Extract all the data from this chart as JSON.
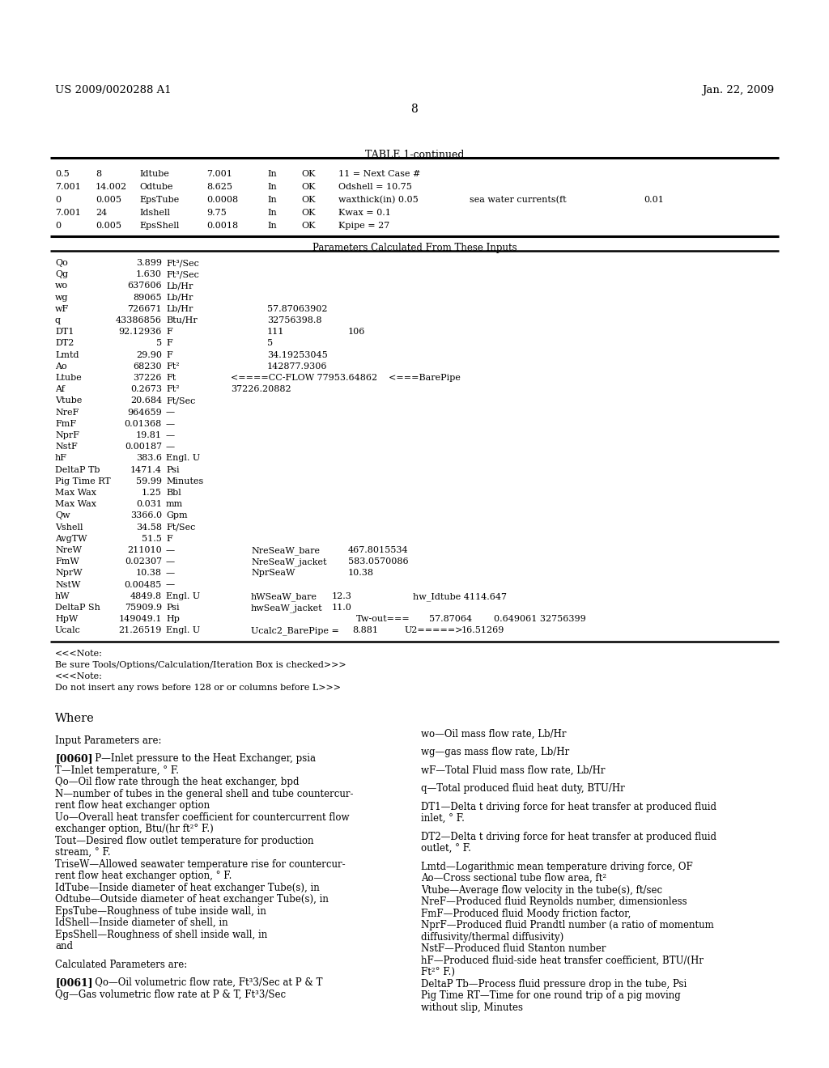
{
  "header_left": "US 2009/0020288 A1",
  "header_right": "Jan. 22, 2009",
  "page_number": "8",
  "table_title": "TABLE 1-continued",
  "table_top_rows": [
    [
      "0.5",
      "8",
      "Idtube",
      "7.001",
      "In",
      "OK",
      "11 = Next Case #",
      "",
      ""
    ],
    [
      "7.001",
      "14.002",
      "Odtube",
      "8.625",
      "In",
      "OK",
      "Odshell = 10.75",
      "",
      ""
    ],
    [
      "0",
      "0.005",
      "EpsTube",
      "0.0008",
      "In",
      "OK",
      "waxthick(in) 0.05",
      "sea water currents(ft",
      "0.01"
    ],
    [
      "7.001",
      "24",
      "Idshell",
      "9.75",
      "In",
      "OK",
      "Kwax = 0.1",
      "",
      ""
    ],
    [
      "0",
      "0.005",
      "EpsShell",
      "0.0018",
      "In",
      "OK",
      "Kpipe = 27",
      "",
      ""
    ]
  ],
  "params_header": "Parameters Calculated From These Inputs",
  "calc_params": [
    [
      "Qo",
      "3.899",
      "Ft³/Sec",
      "",
      "",
      ""
    ],
    [
      "Qg",
      "1.630",
      "Ft³/Sec",
      "",
      "",
      ""
    ],
    [
      "wo",
      "637606",
      "Lb/Hr",
      "",
      "",
      ""
    ],
    [
      "wg",
      "89065",
      "Lb/Hr",
      "",
      "",
      ""
    ],
    [
      "wF",
      "726671",
      "Lb/Hr",
      "57.87063902",
      "",
      ""
    ],
    [
      "q",
      "43386856",
      "Btu/Hr",
      "32756398.8",
      "",
      ""
    ],
    [
      "DT1",
      "92.12936",
      "F",
      "111",
      "106",
      ""
    ],
    [
      "DT2",
      "5",
      "F",
      "5",
      "",
      ""
    ],
    [
      "Lmtd",
      "29.90",
      "F",
      "34.19253045",
      "",
      ""
    ],
    [
      "Ao",
      "68230",
      "Ft²",
      "142877.9306",
      "",
      ""
    ],
    [
      "Ltube",
      "37226",
      "Ft",
      "<====CC-FLOW 77953.64862    <===BarePipe",
      "",
      ""
    ],
    [
      "Af",
      "0.2673",
      "Ft²",
      "37226.20882",
      "",
      ""
    ],
    [
      "Vtube",
      "20.684",
      "Ft/Sec",
      "",
      "",
      ""
    ],
    [
      "NreF",
      "964659",
      "—",
      "",
      "",
      ""
    ],
    [
      "FmF",
      "0.01368",
      "—",
      "",
      "",
      ""
    ],
    [
      "NprF",
      "19.81",
      "—",
      "",
      "",
      ""
    ],
    [
      "NstF",
      "0.00187",
      "—",
      "",
      "",
      ""
    ],
    [
      "hF",
      "383.6",
      "Engl. U",
      "",
      "",
      ""
    ],
    [
      "DeltaP Tb",
      "1471.4",
      "Psi",
      "",
      "",
      ""
    ],
    [
      "Pig Time RT",
      "59.99",
      "Minutes",
      "",
      "",
      ""
    ],
    [
      "Max Wax",
      "1.25",
      "Bbl",
      "",
      "",
      ""
    ],
    [
      "Max Wax",
      "0.031",
      "mm",
      "",
      "",
      ""
    ],
    [
      "Qw",
      "3366.0",
      "Gpm",
      "",
      "",
      ""
    ],
    [
      "Vshell",
      "34.58",
      "Ft/Sec",
      "",
      "",
      ""
    ],
    [
      "AvgTW",
      "51.5",
      "F",
      "",
      "",
      ""
    ],
    [
      "NreW",
      "211010",
      "—",
      "NreSeaW_bare",
      "467.8015534",
      ""
    ],
    [
      "FmW",
      "0.02307",
      "—",
      "NreSeaW_jacket",
      "583.0570086",
      ""
    ],
    [
      "NprW",
      "10.38",
      "—",
      "NprSeaW",
      "10.38",
      ""
    ],
    [
      "NstW",
      "0.00485",
      "—",
      "",
      "",
      ""
    ],
    [
      "hW",
      "4849.8",
      "Engl. U",
      "hWSeaW_bare",
      "12.3",
      "hw_Idtube 4114.647"
    ],
    [
      "DeltaP Sh",
      "75909.9",
      "Psi",
      "hwSeaW_jacket",
      "11.0",
      ""
    ],
    [
      "HpW",
      "149049.1",
      "Hp",
      "",
      "Tw-out===",
      "57.87064    0.649061 32756399"
    ],
    [
      "Ucalc",
      "21.26519",
      "Engl. U",
      "Ucalc2_BarePipe =",
      "8.881",
      "U2=====>   16.51269"
    ]
  ],
  "notes": [
    "<<<Note:",
    "Be sure Tools/Options/Calculation/Iteration Box is checked>>>",
    "<<<Note:",
    "Do not insert any rows before 128 or or columns before L>>>"
  ],
  "where_title": "Where",
  "left_col": [
    [
      "",
      false
    ],
    [
      "Input Parameters are:",
      false
    ],
    [
      "",
      false
    ],
    [
      "[0060]",
      true
    ],
    [
      "P—Inlet pressure to the Heat Exchanger, psia",
      false
    ],
    [
      "T—Inlet temperature, ° F.",
      false
    ],
    [
      "Qo—Oil flow rate through the heat exchanger, bpd",
      false
    ],
    [
      "N—number of tubes in the general shell and tube countercur-",
      false
    ],
    [
      "rent flow heat exchanger option",
      false
    ],
    [
      "Uo—Overall heat transfer coefficient for countercurrent flow",
      false
    ],
    [
      "exchanger option, Btu/(hr ft²° F.)",
      false
    ],
    [
      "Tout—Desired flow outlet temperature for production",
      false
    ],
    [
      "stream, ° F.",
      false
    ],
    [
      "TriseW—Allowed seawater temperature rise for countercur-",
      false
    ],
    [
      "rent flow heat exchanger option, ° F.",
      false
    ],
    [
      "IdTube—Inside diameter of heat exchanger Tube(s), in",
      false
    ],
    [
      "Odtube—Outside diameter of heat exchanger Tube(s), in",
      false
    ],
    [
      "EpsTube—Roughness of tube inside wall, in",
      false
    ],
    [
      "IdShell—Inside diameter of shell, in",
      false
    ],
    [
      "EpsShell—Roughness of shell inside wall, in",
      false
    ],
    [
      "and",
      false
    ],
    [
      "",
      false
    ],
    [
      "Calculated Parameters are:",
      false
    ],
    [
      "",
      false
    ],
    [
      "[0061]",
      true
    ],
    [
      "Qo—Oil volumetric flow rate, Ft³3/Sec at P & T",
      false
    ],
    [
      "Qg—Gas volumetric flow rate at P & T, Ft³3/Sec",
      false
    ]
  ],
  "right_col": [
    [
      "wo—Oil mass flow rate, Lb/Hr",
      false
    ],
    [
      "",
      false
    ],
    [
      "wg—gas mass flow rate, Lb/Hr",
      false
    ],
    [
      "",
      false
    ],
    [
      "wF—Total Fluid mass flow rate, Lb/Hr",
      false
    ],
    [
      "",
      false
    ],
    [
      "q—Total produced fluid heat duty, BTU/Hr",
      false
    ],
    [
      "",
      false
    ],
    [
      "DT1—Delta t driving force for heat transfer at produced fluid",
      false
    ],
    [
      "inlet, ° F.",
      false
    ],
    [
      "",
      false
    ],
    [
      "DT2—Delta t driving force for heat transfer at produced fluid",
      false
    ],
    [
      "outlet, ° F.",
      false
    ],
    [
      "",
      false
    ],
    [
      "Lmtd—Logarithmic mean temperature driving force, OF",
      false
    ],
    [
      "Ao—Cross sectional tube flow area, ft²",
      false
    ],
    [
      "Vtube—Average flow velocity in the tube(s), ft/sec",
      false
    ],
    [
      "NreF—Produced fluid Reynolds number, dimensionless",
      false
    ],
    [
      "FmF—Produced fluid Moody friction factor,",
      false
    ],
    [
      "NprF—Produced fluid Prandtl number (a ratio of momentum",
      false
    ],
    [
      "diffusivity/thermal diffusivity)",
      false
    ],
    [
      "NstF—Produced fluid Stanton number",
      false
    ],
    [
      "hF—Produced fluid-side heat transfer coefficient, BTU/(Hr",
      false
    ],
    [
      "Ft²° F.)",
      false
    ],
    [
      "DeltaP Tb—Process fluid pressure drop in the tube, Psi",
      false
    ],
    [
      "Pig Time RT—Time for one round trip of a pig moving",
      false
    ],
    [
      "without slip, Minutes",
      false
    ]
  ]
}
